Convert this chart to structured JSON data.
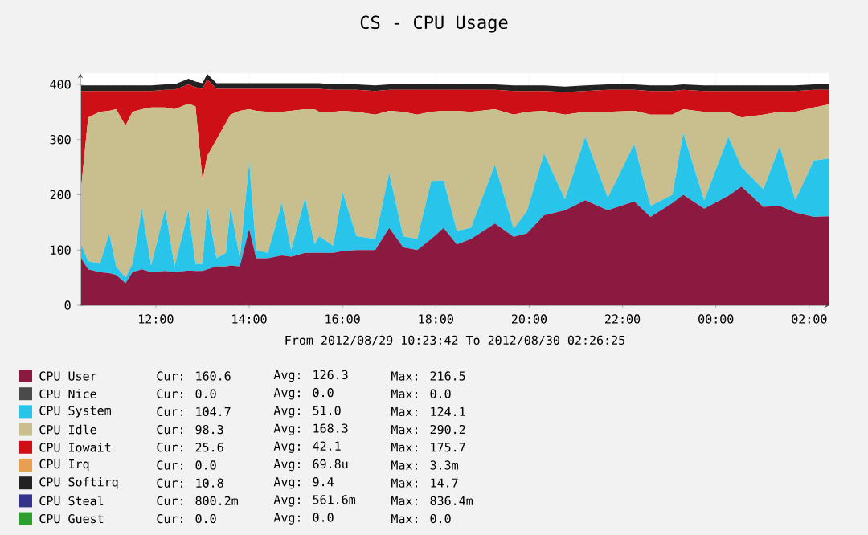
{
  "chart_data": {
    "type": "area",
    "title": "CS - CPU Usage",
    "xlabel": "From 2012/08/29 10:23:42 To 2012/08/30 02:26:25",
    "stacked": true,
    "grid": true,
    "legend": "bottom",
    "x": [
      "2012-08-29T10:24",
      "2012-08-29T10:33",
      "2012-08-29T10:48",
      "2012-08-29T11:00",
      "2012-08-29T11:09",
      "2012-08-29T11:21",
      "2012-08-29T11:30",
      "2012-08-29T11:42",
      "2012-08-29T11:54",
      "2012-08-29T12:12",
      "2012-08-29T12:24",
      "2012-08-29T12:42",
      "2012-08-29T12:51",
      "2012-08-29T13:00",
      "2012-08-29T13:06",
      "2012-08-29T13:18",
      "2012-08-29T13:30",
      "2012-08-29T13:36",
      "2012-08-29T13:48",
      "2012-08-29T14:00",
      "2012-08-29T14:09",
      "2012-08-29T14:24",
      "2012-08-29T14:42",
      "2012-08-29T14:54",
      "2012-08-29T15:12",
      "2012-08-29T15:24",
      "2012-08-29T15:30",
      "2012-08-29T15:48",
      "2012-08-29T16:00",
      "2012-08-29T16:18",
      "2012-08-29T16:42",
      "2012-08-29T17:00",
      "2012-08-29T17:18",
      "2012-08-29T17:36",
      "2012-08-29T17:54",
      "2012-08-29T18:10",
      "2012-08-29T18:27",
      "2012-08-29T18:45",
      "2012-08-29T19:16",
      "2012-08-29T19:40",
      "2012-08-29T19:57",
      "2012-08-29T20:19",
      "2012-08-29T20:46",
      "2012-08-29T21:12",
      "2012-08-29T21:41",
      "2012-08-29T22:15",
      "2012-08-29T22:36",
      "2012-08-29T23:04",
      "2012-08-29T23:18",
      "2012-08-29T23:45",
      "2012-08-30T00:16",
      "2012-08-30T00:33",
      "2012-08-30T01:01",
      "2012-08-30T01:22",
      "2012-08-30T01:42",
      "2012-08-30T02:06",
      "2012-08-30T02:26"
    ],
    "xlim": [
      "2012-08-29T10:23",
      "2012-08-30T02:26"
    ],
    "ylim": [
      0,
      420
    ],
    "xticks": [
      {
        "value": "2012-08-29T12:00",
        "label": "12:00"
      },
      {
        "value": "2012-08-29T14:00",
        "label": "14:00"
      },
      {
        "value": "2012-08-29T16:00",
        "label": "16:00"
      },
      {
        "value": "2012-08-29T18:00",
        "label": "18:00"
      },
      {
        "value": "2012-08-29T20:00",
        "label": "20:00"
      },
      {
        "value": "2012-08-29T22:00",
        "label": "22:00"
      },
      {
        "value": "2012-08-30T00:00",
        "label": "00:00"
      },
      {
        "value": "2012-08-30T02:00",
        "label": "02:00"
      }
    ],
    "yticks": [
      0,
      100,
      200,
      300,
      400
    ],
    "series": [
      {
        "name": "CPU User",
        "color": "#8c1a40",
        "values": [
          85,
          65,
          60,
          58,
          55,
          40,
          60,
          65,
          60,
          62,
          60,
          63,
          62,
          62,
          65,
          70,
          70,
          72,
          70,
          138,
          85,
          85,
          90,
          88,
          95,
          95,
          95,
          95,
          98,
          100,
          100,
          140,
          105,
          100,
          120,
          140,
          110,
          120,
          148,
          124,
          130,
          163,
          172,
          190,
          172,
          188,
          160,
          185,
          200,
          175,
          198,
          215,
          178,
          180,
          168,
          160,
          161
        ]
      },
      {
        "name": "CPU Nice",
        "color": "#4a4a4a",
        "values": [
          null,
          null,
          null,
          null,
          null,
          null,
          null,
          null,
          null,
          null,
          null,
          null,
          null,
          null,
          null,
          null,
          null,
          null,
          null,
          null,
          null,
          null,
          null,
          null,
          null,
          null,
          null,
          null,
          null,
          null,
          null,
          null,
          null,
          null,
          null,
          null,
          null,
          null,
          null,
          null,
          null,
          null,
          null,
          null,
          null,
          null,
          null,
          null,
          null,
          null,
          null,
          null,
          null,
          null,
          null,
          null,
          null
        ]
      },
      {
        "name": "CPU System",
        "color": "#28c4ea",
        "values": [
          25,
          15,
          15,
          72,
          15,
          10,
          15,
          110,
          12,
          113,
          10,
          109,
          13,
          13,
          115,
          15,
          25,
          106,
          15,
          122,
          15,
          10,
          95,
          12,
          100,
          15,
          30,
          13,
          107,
          25,
          20,
          100,
          20,
          20,
          105,
          86,
          25,
          20,
          107,
          15,
          40,
          112,
          20,
          115,
          23,
          104,
          20,
          15,
          112,
          15,
          107,
          35,
          32,
          108,
          22,
          102,
          105
        ]
      },
      {
        "name": "CPU Idle",
        "color": "#c9bf8e",
        "values": [
          103,
          260,
          275,
          222,
          285,
          275,
          275,
          180,
          286,
          183,
          285,
          193,
          285,
          151,
          90,
          215,
          235,
          167,
          267,
          95,
          252,
          255,
          165,
          252,
          160,
          245,
          225,
          242,
          147,
          225,
          225,
          112,
          225,
          225,
          125,
          126,
          217,
          210,
          100,
          206,
          180,
          77,
          153,
          45,
          155,
          60,
          165,
          145,
          43,
          160,
          45,
          90,
          135,
          62,
          160,
          96,
          98
        ]
      },
      {
        "name": "CPU Iowait",
        "color": "#cc1016",
        "values": [
          175,
          48,
          38,
          36,
          33,
          63,
          38,
          33,
          30,
          32,
          35,
          35,
          35,
          166,
          139,
          92,
          62,
          47,
          40,
          37,
          40,
          42,
          42,
          40,
          37,
          37,
          42,
          40,
          38,
          40,
          43,
          38,
          40,
          45,
          40,
          38,
          38,
          40,
          35,
          43,
          38,
          36,
          41,
          38,
          40,
          38,
          43,
          43,
          35,
          38,
          38,
          48,
          43,
          38,
          38,
          32,
          26
        ]
      },
      {
        "name": "CPU Irq",
        "color": "#e8a050",
        "values": [
          null,
          null,
          null,
          null,
          null,
          null,
          null,
          null,
          null,
          null,
          null,
          null,
          null,
          null,
          null,
          null,
          null,
          null,
          null,
          null,
          null,
          null,
          null,
          null,
          null,
          null,
          null,
          null,
          null,
          null,
          null,
          null,
          null,
          null,
          null,
          null,
          null,
          null,
          null,
          null,
          null,
          null,
          null,
          null,
          null,
          null,
          null,
          null,
          null,
          null,
          null,
          null,
          null,
          null,
          null,
          null,
          null
        ]
      },
      {
        "name": "CPU Softirq",
        "color": "#222222",
        "values": [
          10,
          10,
          10,
          10,
          10,
          10,
          10,
          10,
          10,
          10,
          10,
          10,
          10,
          10,
          10,
          10,
          10,
          10,
          10,
          10,
          10,
          10,
          10,
          10,
          10,
          10,
          10,
          10,
          10,
          10,
          10,
          10,
          10,
          10,
          10,
          10,
          10,
          10,
          10,
          10,
          10,
          10,
          10,
          10,
          10,
          10,
          10,
          10,
          10,
          10,
          10,
          10,
          10,
          10,
          10,
          10,
          11
        ]
      },
      {
        "name": "CPU Steal",
        "color": "#34348c",
        "values": [
          null,
          null,
          null,
          null,
          null,
          null,
          null,
          null,
          null,
          null,
          null,
          null,
          null,
          null,
          null,
          null,
          null,
          null,
          null,
          null,
          null,
          null,
          null,
          null,
          null,
          null,
          null,
          null,
          null,
          null,
          null,
          null,
          null,
          null,
          null,
          null,
          null,
          null,
          null,
          null,
          null,
          null,
          null,
          null,
          null,
          null,
          null,
          null,
          null,
          null,
          null,
          null,
          null,
          null,
          null,
          null,
          null
        ]
      },
      {
        "name": "CPU Guest",
        "color": "#2e9e2e",
        "values": [
          null,
          null,
          null,
          null,
          null,
          null,
          null,
          null,
          null,
          null,
          null,
          null,
          null,
          null,
          null,
          null,
          null,
          null,
          null,
          null,
          null,
          null,
          null,
          null,
          null,
          null,
          null,
          null,
          null,
          null,
          null,
          null,
          null,
          null,
          null,
          null,
          null,
          null,
          null,
          null,
          null,
          null,
          null,
          null,
          null,
          null,
          null,
          null,
          null,
          null,
          null,
          null,
          null,
          null,
          null,
          null,
          null
        ]
      }
    ],
    "annotations": [
      "Cur: 160.6",
      "Avg: 126.3",
      "Max: 216.5",
      "Cur:   0.0",
      "Avg:   0.0",
      "Max:   0.0",
      "Cur: 104.7",
      "Avg:  51.0",
      "Max: 124.1",
      "Cur:  98.3",
      "Avg: 168.3",
      "Max: 290.2",
      "Cur:  25.6",
      "Avg:  42.1",
      "Max: 175.7",
      "Cur:   0.0",
      "Avg:  69.8u",
      "Max:   3.3m",
      "Cur:  10.8",
      "Avg:   9.4",
      "Max:  14.7",
      "Cur: 800.2m",
      "Avg: 561.6m",
      "Max: 836.4m",
      "Cur:   0.0",
      "Avg:   0.0",
      "Max:   0.0"
    ]
  }
}
